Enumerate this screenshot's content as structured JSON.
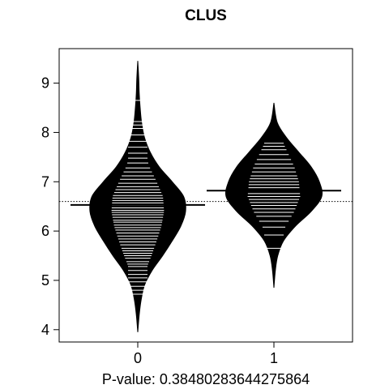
{
  "chart_data": {
    "type": "beanplot",
    "title": "CLUS",
    "xlabel": "P-value: 0.38480283644275864",
    "ylabel": "",
    "categories": [
      "0",
      "1"
    ],
    "ylim": [
      3.75,
      9.7
    ],
    "yticks": [
      4,
      5,
      6,
      7,
      8,
      9
    ],
    "grid": false,
    "legend": "none",
    "overall_mean": 6.6,
    "colors": {
      "bean_fill": "#000000",
      "bean_lines": "#ffffff",
      "axis": "#000000"
    },
    "beans": [
      {
        "category": "0",
        "mean": 6.53,
        "range": [
          3.95,
          9.45
        ],
        "density": [
          [
            3.95,
            0.0
          ],
          [
            4.3,
            0.03
          ],
          [
            4.6,
            0.07
          ],
          [
            4.9,
            0.14
          ],
          [
            5.2,
            0.3
          ],
          [
            5.5,
            0.52
          ],
          [
            5.8,
            0.72
          ],
          [
            6.1,
            0.9
          ],
          [
            6.4,
            1.0
          ],
          [
            6.7,
            0.96
          ],
          [
            7.0,
            0.72
          ],
          [
            7.3,
            0.45
          ],
          [
            7.6,
            0.26
          ],
          [
            7.9,
            0.14
          ],
          [
            8.2,
            0.08
          ],
          [
            8.5,
            0.05
          ],
          [
            8.8,
            0.03
          ],
          [
            9.1,
            0.02
          ],
          [
            9.45,
            0.0
          ]
        ],
        "observations": [
          4.72,
          4.8,
          4.88,
          4.97,
          5.05,
          5.12,
          5.2,
          5.28,
          5.33,
          5.38,
          5.45,
          5.5,
          5.55,
          5.6,
          5.65,
          5.72,
          5.78,
          5.84,
          5.9,
          5.96,
          6.02,
          6.07,
          6.12,
          6.18,
          6.22,
          6.28,
          6.33,
          6.38,
          6.42,
          6.47,
          6.52,
          6.57,
          6.62,
          6.67,
          6.72,
          6.78,
          6.84,
          6.9,
          6.97,
          7.05,
          7.12,
          7.2,
          7.28,
          7.38,
          7.48,
          7.58,
          7.7,
          7.82,
          7.95,
          8.08,
          8.15,
          8.22,
          8.65
        ]
      },
      {
        "category": "1",
        "mean": 6.82,
        "range": [
          4.85,
          8.6
        ],
        "density": [
          [
            4.85,
            0.0
          ],
          [
            5.2,
            0.03
          ],
          [
            5.5,
            0.08
          ],
          [
            5.8,
            0.2
          ],
          [
            6.1,
            0.45
          ],
          [
            6.4,
            0.78
          ],
          [
            6.7,
            1.0
          ],
          [
            7.0,
            0.95
          ],
          [
            7.3,
            0.78
          ],
          [
            7.6,
            0.52
          ],
          [
            7.9,
            0.26
          ],
          [
            8.2,
            0.07
          ],
          [
            8.6,
            0.0
          ]
        ],
        "observations": [
          5.65,
          5.92,
          6.08,
          6.2,
          6.3,
          6.38,
          6.45,
          6.52,
          6.58,
          6.64,
          6.7,
          6.76,
          6.82,
          6.88,
          6.94,
          7.0,
          7.06,
          7.12,
          7.2,
          7.28,
          7.36,
          7.45,
          7.55,
          7.65,
          7.72,
          7.78
        ]
      }
    ]
  }
}
